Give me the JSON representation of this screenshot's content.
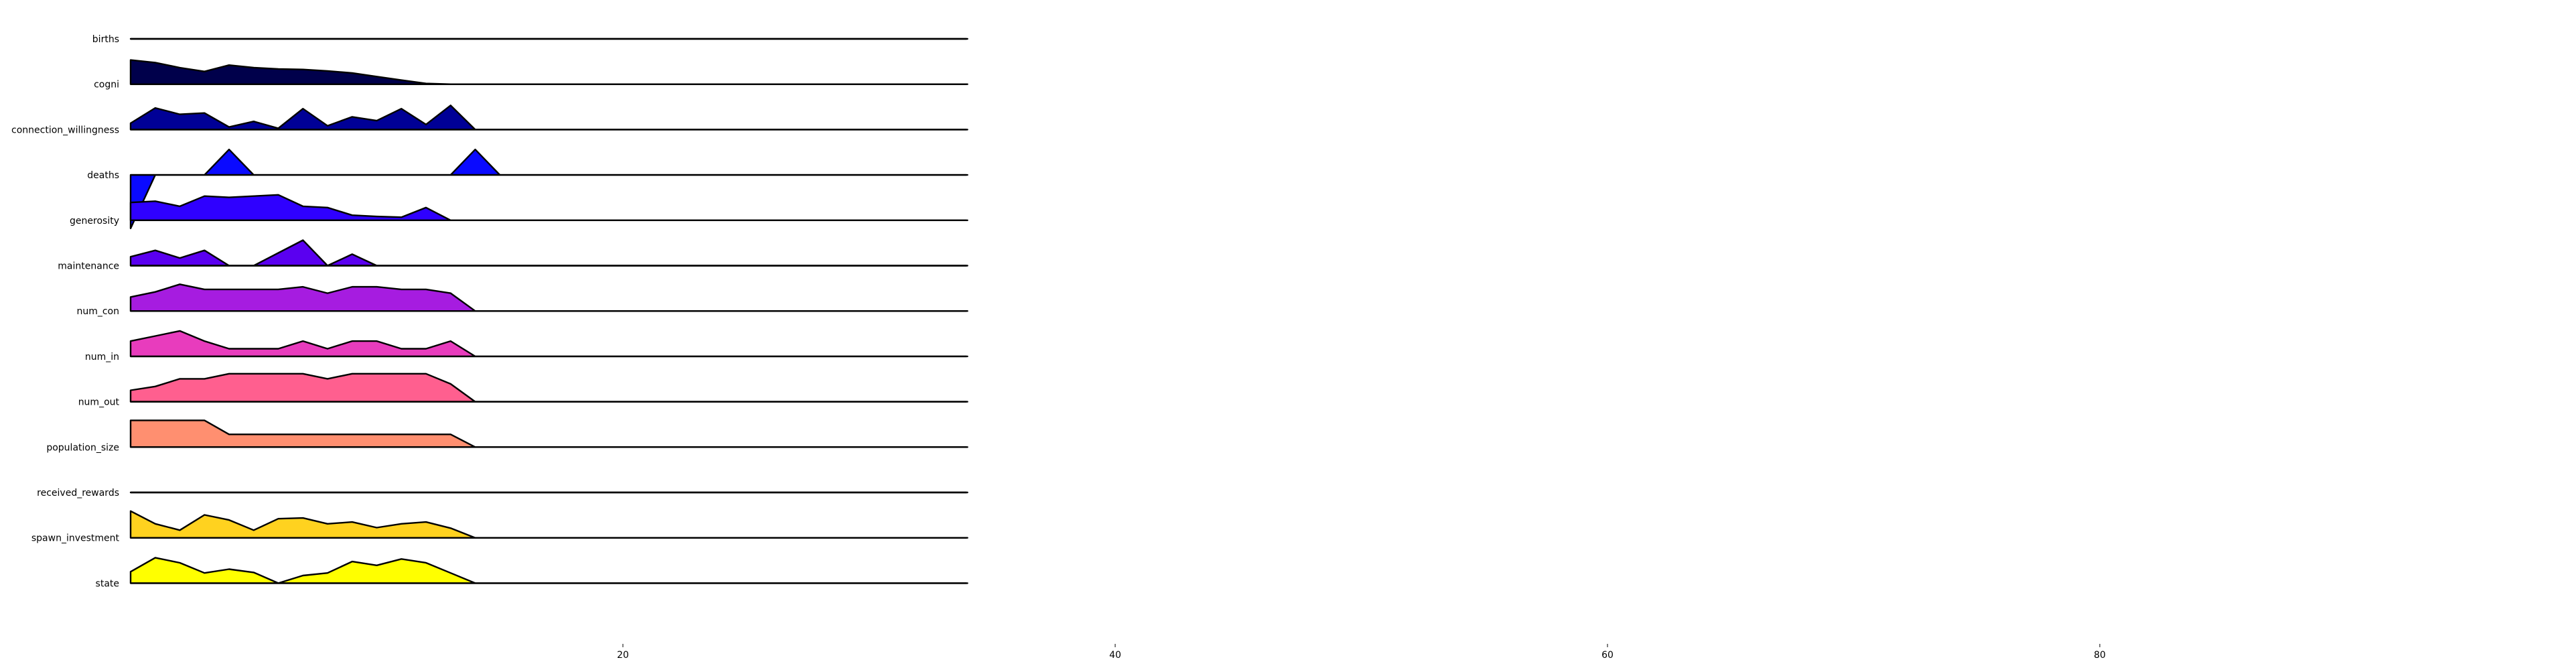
{
  "chart_data": {
    "type": "area",
    "title": "",
    "xlabel": "",
    "ylabel": "",
    "xlim": [
      0,
      100
    ],
    "x_ticks": [
      20,
      40,
      60,
      80
    ],
    "x_tick_labels": [
      "20",
      "40",
      "60",
      "80"
    ],
    "x": [
      0,
      1,
      2,
      3,
      4,
      5,
      6,
      7,
      8,
      9,
      10,
      11,
      12,
      13,
      14,
      15,
      16,
      17,
      18,
      19,
      20,
      21,
      22,
      23,
      24,
      25,
      26,
      27,
      28,
      29,
      30,
      31,
      32,
      33,
      34
    ],
    "series": [
      {
        "name": "births",
        "color": "#000000",
        "values": [
          0,
          0,
          0,
          0,
          0,
          0,
          0,
          0,
          0,
          0,
          0,
          0,
          0,
          0,
          0,
          0,
          0,
          0,
          0,
          0,
          0,
          0,
          0,
          0,
          0,
          0,
          0,
          0,
          0,
          0,
          0,
          0,
          0,
          0,
          0
        ]
      },
      {
        "name": "cogni",
        "color": "#00004b",
        "values": [
          0.95,
          0.85,
          0.65,
          0.5,
          0.75,
          0.65,
          0.6,
          0.58,
          0.52,
          0.44,
          0.3,
          0.16,
          0.03,
          0,
          0,
          0,
          0,
          0,
          0,
          0,
          0,
          0,
          0,
          0,
          0,
          0,
          0,
          0,
          0,
          0,
          0,
          0,
          0,
          0,
          0
        ]
      },
      {
        "name": "connection_willingness",
        "color": "#000096",
        "values": [
          0.25,
          0.85,
          0.6,
          0.65,
          0.1,
          0.32,
          0.05,
          0.82,
          0.15,
          0.5,
          0.35,
          0.82,
          0.2,
          0.95,
          0,
          0,
          0,
          0,
          0,
          0,
          0,
          0,
          0,
          0,
          0,
          0,
          0,
          0,
          0,
          0,
          0,
          0,
          0,
          0,
          0
        ]
      },
      {
        "name": "deaths",
        "color": "#0a0aff",
        "values": [
          -2.1,
          0,
          0,
          0,
          1,
          0,
          0,
          0,
          0,
          0,
          0,
          0,
          0,
          0,
          1,
          0,
          0,
          0,
          0,
          0,
          0,
          0,
          0,
          0,
          0,
          0,
          0,
          0,
          0,
          0,
          0,
          0,
          0,
          0,
          0
        ]
      },
      {
        "name": "generosity",
        "color": "#2f00ff",
        "values": [
          0.7,
          0.75,
          0.55,
          0.95,
          0.9,
          0.95,
          1.0,
          0.55,
          0.5,
          0.2,
          0.15,
          0.12,
          0.5,
          0,
          0,
          0,
          0,
          0,
          0,
          0,
          0,
          0,
          0,
          0,
          0,
          0,
          0,
          0,
          0,
          0,
          0,
          0,
          0,
          0,
          0
        ]
      },
      {
        "name": "maintenance",
        "color": "#5a00f0",
        "values": [
          0.35,
          0.6,
          0.3,
          0.6,
          0,
          0,
          0.5,
          1.0,
          0,
          0.45,
          0,
          0,
          0,
          0,
          0,
          0,
          0,
          0,
          0,
          0,
          0,
          0,
          0,
          0,
          0,
          0,
          0,
          0,
          0,
          0,
          0,
          0,
          0,
          0,
          0
        ]
      },
      {
        "name": "num_con",
        "color": "#a61ce0",
        "values": [
          0.55,
          0.75,
          1.05,
          0.85,
          0.85,
          0.85,
          0.85,
          0.95,
          0.7,
          0.95,
          0.95,
          0.85,
          0.85,
          0.7,
          0,
          0,
          0,
          0,
          0,
          0,
          0,
          0,
          0,
          0,
          0,
          0,
          0,
          0,
          0,
          0,
          0,
          0,
          0,
          0,
          0
        ]
      },
      {
        "name": "num_in",
        "color": "#e83cbd",
        "values": [
          0.6,
          0.8,
          1.0,
          0.6,
          0.3,
          0.3,
          0.3,
          0.6,
          0.3,
          0.6,
          0.6,
          0.3,
          0.3,
          0.6,
          0,
          0,
          0,
          0,
          0,
          0,
          0,
          0,
          0,
          0,
          0,
          0,
          0,
          0,
          0,
          0,
          0,
          0,
          0,
          0,
          0
        ]
      },
      {
        "name": "num_out",
        "color": "#ff5f8f",
        "values": [
          0.45,
          0.6,
          0.9,
          0.9,
          1.1,
          1.1,
          1.1,
          1.1,
          0.9,
          1.1,
          1.1,
          1.1,
          1.1,
          0.7,
          0,
          0,
          0,
          0,
          0,
          0,
          0,
          0,
          0,
          0,
          0,
          0,
          0,
          0,
          0,
          0,
          0,
          0,
          0,
          0,
          0
        ]
      },
      {
        "name": "population_size",
        "color": "#ff8f70",
        "values": [
          1.05,
          1.05,
          1.05,
          1.05,
          0.5,
          0.5,
          0.5,
          0.5,
          0.5,
          0.5,
          0.5,
          0.5,
          0.5,
          0.5,
          0,
          0,
          0,
          0,
          0,
          0,
          0,
          0,
          0,
          0,
          0,
          0,
          0,
          0,
          0,
          0,
          0,
          0,
          0,
          0,
          0
        ]
      },
      {
        "name": "received_rewards",
        "color": "#ffbb55",
        "values": [
          0,
          0,
          0,
          0,
          0,
          0,
          0,
          0,
          0,
          0,
          0,
          0,
          0,
          0,
          0,
          0,
          0,
          0,
          0,
          0,
          0,
          0,
          0,
          0,
          0,
          0,
          0,
          0,
          0,
          0,
          0,
          0,
          0,
          0,
          0
        ]
      },
      {
        "name": "spawn_investment",
        "color": "#ffd21f",
        "values": [
          1.05,
          0.55,
          0.3,
          0.9,
          0.7,
          0.3,
          0.75,
          0.78,
          0.55,
          0.62,
          0.4,
          0.55,
          0.62,
          0.38,
          0,
          0,
          0,
          0,
          0,
          0,
          0,
          0,
          0,
          0,
          0,
          0,
          0,
          0,
          0,
          0,
          0,
          0,
          0,
          0,
          0
        ]
      },
      {
        "name": "state",
        "color": "#ffff00",
        "values": [
          0.45,
          1.0,
          0.8,
          0.4,
          0.55,
          0.42,
          0,
          0.3,
          0.4,
          0.85,
          0.7,
          0.95,
          0.8,
          0.4,
          0,
          0,
          0,
          0,
          0,
          0,
          0,
          0,
          0,
          0,
          0,
          0,
          0,
          0,
          0,
          0,
          0,
          0,
          0,
          0,
          0
        ]
      }
    ],
    "grid": false,
    "legend": "none"
  }
}
